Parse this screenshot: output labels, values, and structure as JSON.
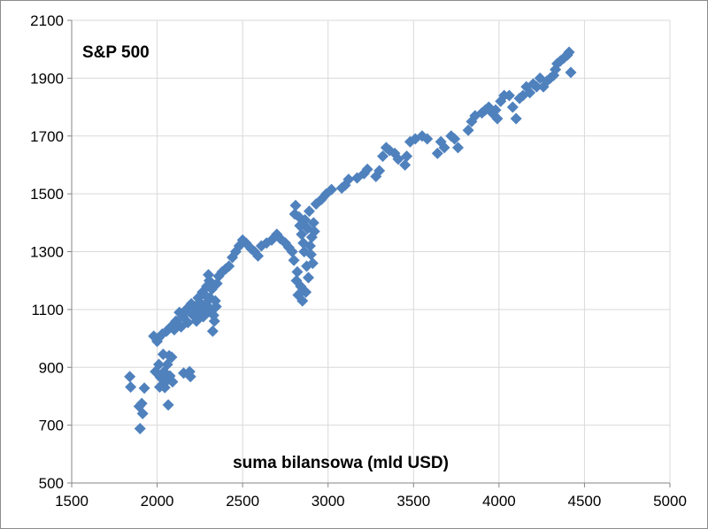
{
  "chart_data": {
    "type": "scatter",
    "title": "S&P 500",
    "xlabel": "suma bilansowa (mld USD)",
    "ylabel": "",
    "xlim": [
      1500,
      5000
    ],
    "ylim": [
      500,
      2100
    ],
    "x_ticks": [
      1500,
      2000,
      2500,
      3000,
      3500,
      4000,
      4500,
      5000
    ],
    "y_ticks": [
      500,
      700,
      900,
      1100,
      1300,
      1500,
      1700,
      1900,
      2100
    ],
    "grid": true,
    "legend": "none",
    "marker": "diamond",
    "color": "#4f81bd",
    "series": [
      {
        "points": [
          [
            1840,
            868
          ],
          [
            1845,
            832
          ],
          [
            1895,
            765
          ],
          [
            1900,
            688
          ],
          [
            1910,
            775
          ],
          [
            1915,
            740
          ],
          [
            1925,
            828
          ],
          [
            1980,
            1008
          ],
          [
            1990,
            885
          ],
          [
            2000,
            990
          ],
          [
            2005,
            1000
          ],
          [
            2010,
            910
          ],
          [
            2015,
            832
          ],
          [
            2020,
            865
          ],
          [
            2030,
            1015
          ],
          [
            2035,
            945
          ],
          [
            2040,
            885
          ],
          [
            2045,
            830
          ],
          [
            2050,
            850
          ],
          [
            2055,
            1025
          ],
          [
            2060,
            910
          ],
          [
            2065,
            770
          ],
          [
            2070,
            940
          ],
          [
            2075,
            870
          ],
          [
            2080,
            1040
          ],
          [
            2085,
            935
          ],
          [
            2090,
            850
          ],
          [
            2100,
            1030
          ],
          [
            2110,
            1060
          ],
          [
            2120,
            1045
          ],
          [
            2130,
            1090
          ],
          [
            2140,
            1040
          ],
          [
            2150,
            1075
          ],
          [
            2155,
            880
          ],
          [
            2160,
            1090
          ],
          [
            2170,
            1100
          ],
          [
            2180,
            1055
          ],
          [
            2190,
            885
          ],
          [
            2195,
            868
          ],
          [
            2200,
            1120
          ],
          [
            2205,
            1095
          ],
          [
            2210,
            1080
          ],
          [
            2220,
            1110
          ],
          [
            2230,
            1060
          ],
          [
            2240,
            1140
          ],
          [
            2245,
            1090
          ],
          [
            2250,
            1125
          ],
          [
            2260,
            1100
          ],
          [
            2265,
            1160
          ],
          [
            2270,
            1075
          ],
          [
            2275,
            1110
          ],
          [
            2280,
            1150
          ],
          [
            2285,
            1120
          ],
          [
            2290,
            1180
          ],
          [
            2295,
            1090
          ],
          [
            2300,
            1220
          ],
          [
            2305,
            1200
          ],
          [
            2310,
            1140
          ],
          [
            2315,
            1100
          ],
          [
            2320,
            1170
          ],
          [
            2325,
            1025
          ],
          [
            2330,
            1080
          ],
          [
            2335,
            1060
          ],
          [
            2340,
            1130
          ],
          [
            2345,
            1110
          ],
          [
            2350,
            1190
          ],
          [
            2360,
            1215
          ],
          [
            2380,
            1230
          ],
          [
            2400,
            1240
          ],
          [
            2420,
            1250
          ],
          [
            2440,
            1280
          ],
          [
            2460,
            1300
          ],
          [
            2480,
            1320
          ],
          [
            2500,
            1340
          ],
          [
            2520,
            1330
          ],
          [
            2550,
            1310
          ],
          [
            2570,
            1300
          ],
          [
            2590,
            1285
          ],
          [
            2610,
            1320
          ],
          [
            2640,
            1330
          ],
          [
            2670,
            1340
          ],
          [
            2700,
            1360
          ],
          [
            2720,
            1345
          ],
          [
            2750,
            1330
          ],
          [
            2770,
            1315
          ],
          [
            2790,
            1300
          ],
          [
            2800,
            1270
          ],
          [
            2805,
            1430
          ],
          [
            2810,
            1460
          ],
          [
            2815,
            1200
          ],
          [
            2820,
            1230
          ],
          [
            2825,
            1150
          ],
          [
            2830,
            1420
          ],
          [
            2835,
            1390
          ],
          [
            2840,
            1180
          ],
          [
            2845,
            1360
          ],
          [
            2850,
            1130
          ],
          [
            2855,
            1330
          ],
          [
            2860,
            1300
          ],
          [
            2865,
            1410
          ],
          [
            2870,
            1160
          ],
          [
            2875,
            1250
          ],
          [
            2880,
            1380
          ],
          [
            2885,
            1210
          ],
          [
            2890,
            1440
          ],
          [
            2895,
            1320
          ],
          [
            2900,
            1290
          ],
          [
            2905,
            1350
          ],
          [
            2910,
            1260
          ],
          [
            2915,
            1400
          ],
          [
            2920,
            1370
          ],
          [
            2930,
            1465
          ],
          [
            2960,
            1480
          ],
          [
            2990,
            1500
          ],
          [
            3020,
            1515
          ],
          [
            3080,
            1520
          ],
          [
            3100,
            1530
          ],
          [
            3120,
            1550
          ],
          [
            3170,
            1555
          ],
          [
            3210,
            1570
          ],
          [
            3230,
            1585
          ],
          [
            3280,
            1560
          ],
          [
            3300,
            1580
          ],
          [
            3320,
            1630
          ],
          [
            3340,
            1660
          ],
          [
            3360,
            1650
          ],
          [
            3390,
            1640
          ],
          [
            3410,
            1620
          ],
          [
            3450,
            1600
          ],
          [
            3460,
            1630
          ],
          [
            3480,
            1680
          ],
          [
            3510,
            1690
          ],
          [
            3550,
            1700
          ],
          [
            3580,
            1690
          ],
          [
            3640,
            1640
          ],
          [
            3660,
            1680
          ],
          [
            3680,
            1660
          ],
          [
            3720,
            1700
          ],
          [
            3740,
            1690
          ],
          [
            3760,
            1660
          ],
          [
            3820,
            1720
          ],
          [
            3840,
            1750
          ],
          [
            3860,
            1770
          ],
          [
            3900,
            1780
          ],
          [
            3920,
            1790
          ],
          [
            3940,
            1800
          ],
          [
            3960,
            1780
          ],
          [
            3980,
            1790
          ],
          [
            3990,
            1760
          ],
          [
            4010,
            1820
          ],
          [
            4030,
            1840
          ],
          [
            4060,
            1840
          ],
          [
            4080,
            1800
          ],
          [
            4100,
            1760
          ],
          [
            4120,
            1830
          ],
          [
            4140,
            1840
          ],
          [
            4160,
            1870
          ],
          [
            4180,
            1850
          ],
          [
            4200,
            1880
          ],
          [
            4220,
            1870
          ],
          [
            4240,
            1900
          ],
          [
            4260,
            1870
          ],
          [
            4280,
            1890
          ],
          [
            4300,
            1900
          ],
          [
            4320,
            1910
          ],
          [
            4330,
            1930
          ],
          [
            4340,
            1950
          ],
          [
            4360,
            1960
          ],
          [
            4380,
            1970
          ],
          [
            4400,
            1980
          ],
          [
            4410,
            1990
          ],
          [
            4420,
            1920
          ]
        ]
      }
    ]
  }
}
